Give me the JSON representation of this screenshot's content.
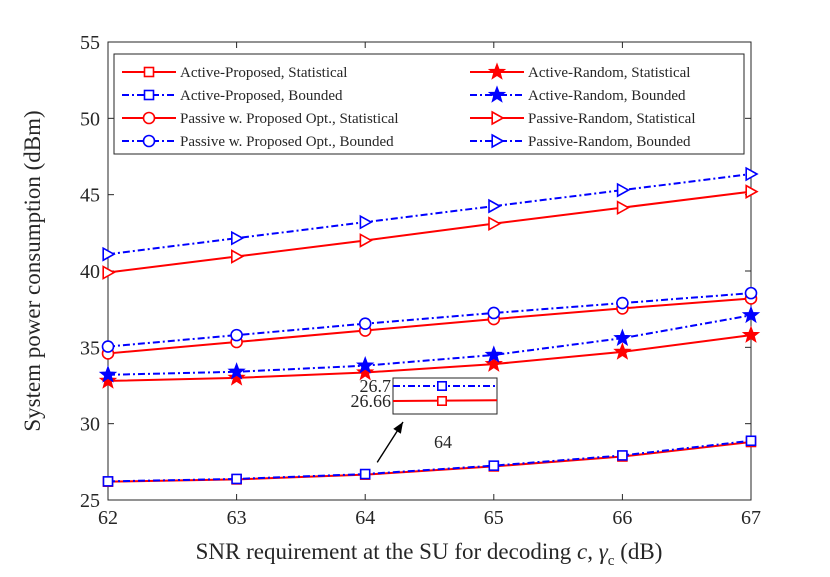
{
  "chart_data": {
    "type": "line",
    "xlabel": "SNR requirement at the SU for decoding  c, γ",
    "xlabel_parts": {
      "main": "SNR requirement at the SU for decoding",
      "var_c": "c",
      "gamma": "γ",
      "sub": "c",
      "unit": "(dB)"
    },
    "ylabel": "System power consumption (dBm)",
    "x": [
      62,
      63,
      64,
      65,
      66,
      67
    ],
    "x_tick_labels": [
      "62",
      "63",
      "64",
      "65",
      "66",
      "67"
    ],
    "y_ticks": [
      25,
      30,
      35,
      40,
      45,
      50,
      55
    ],
    "y_tick_labels": [
      "25",
      "30",
      "35",
      "40",
      "45",
      "50",
      "55"
    ],
    "xlim": [
      62,
      67
    ],
    "ylim": [
      25,
      55
    ],
    "legend_position": "top",
    "series": [
      {
        "name": "Active-Proposed, Statistical",
        "color": "#ff0000",
        "dash": "solid",
        "marker": "square",
        "values": [
          26.2,
          26.35,
          26.66,
          27.2,
          27.85,
          28.8
        ]
      },
      {
        "name": "Active-Proposed, Bounded",
        "color": "#0000ff",
        "dash": "dashdot",
        "marker": "square",
        "values": [
          26.22,
          26.38,
          26.7,
          27.25,
          27.92,
          28.88
        ]
      },
      {
        "name": "Passive w. Proposed Opt., Statistical",
        "color": "#ff0000",
        "dash": "solid",
        "marker": "circle",
        "values": [
          34.6,
          35.35,
          36.1,
          36.85,
          37.55,
          38.2
        ]
      },
      {
        "name": "Passive w. Proposed Opt., Bounded",
        "color": "#0000ff",
        "dash": "dashdot",
        "marker": "circle",
        "values": [
          35.05,
          35.8,
          36.55,
          37.25,
          37.9,
          38.55
        ]
      },
      {
        "name": "Active-Random, Statistical",
        "color": "#ff0000",
        "dash": "solid",
        "marker": "star",
        "values": [
          32.8,
          33.0,
          33.35,
          33.9,
          34.7,
          35.8
        ]
      },
      {
        "name": "Active-Random, Bounded",
        "color": "#0000ff",
        "dash": "dashdot",
        "marker": "star",
        "values": [
          33.2,
          33.4,
          33.8,
          34.5,
          35.6,
          37.1
        ]
      },
      {
        "name": "Passive-Random, Statistical",
        "color": "#ff0000",
        "dash": "solid",
        "marker": "triangle-right",
        "values": [
          39.9,
          40.95,
          42.0,
          43.1,
          44.15,
          45.2
        ]
      },
      {
        "name": "Passive-Random, Bounded",
        "color": "#0000ff",
        "dash": "dashdot",
        "marker": "triangle-right",
        "values": [
          41.1,
          42.15,
          43.2,
          44.25,
          45.3,
          46.35
        ]
      }
    ],
    "inset": {
      "x_label": "64",
      "y_labels": [
        "26.7",
        "26.66"
      ],
      "series": [
        {
          "color": "#0000ff",
          "dash": "dashdot",
          "marker": "square",
          "value": 26.7
        },
        {
          "color": "#ff0000",
          "dash": "solid",
          "marker": "square",
          "value": 26.66
        }
      ],
      "points_to": {
        "x": 64,
        "y": 26.68
      }
    }
  }
}
